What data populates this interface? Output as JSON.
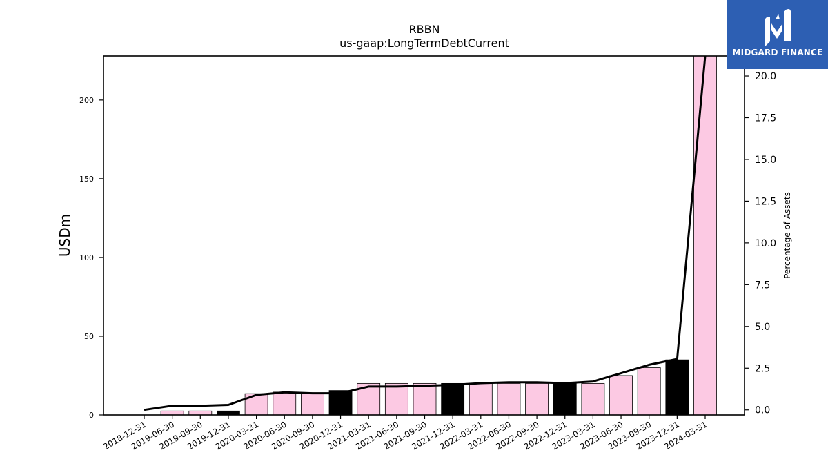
{
  "chart_data": {
    "type": "bar",
    "title": "RBBN",
    "subtitle": "us-gaap:LongTermDebtCurrent",
    "ylabel": "USDm",
    "y2label": "Percentage of Assets",
    "ylim": [
      0,
      228
    ],
    "y2lim": [
      -0.3,
      21.2
    ],
    "yticks": [
      0,
      50,
      100,
      150,
      200
    ],
    "y2ticks": [
      "0.0",
      "2.5",
      "5.0",
      "7.5",
      "10.0",
      "12.5",
      "15.0",
      "17.5",
      "20.0"
    ],
    "categories": [
      "2018-12-31",
      "2019-06-30",
      "2019-09-30",
      "2019-12-31",
      "2020-03-31",
      "2020-06-30",
      "2020-09-30",
      "2020-12-31",
      "2021-03-31",
      "2021-06-30",
      "2021-09-30",
      "2021-12-31",
      "2022-03-31",
      "2022-06-30",
      "2022-09-30",
      "2022-12-31",
      "2023-03-31",
      "2023-06-30",
      "2023-09-30",
      "2023-12-31",
      "2024-03-31"
    ],
    "series": [
      {
        "type": "bar",
        "values": [
          0,
          2.5,
          2.5,
          2.5,
          13.5,
          14.5,
          14,
          15.5,
          20,
          20,
          20,
          20,
          20,
          20,
          20,
          20,
          20,
          25,
          30,
          35,
          228
        ],
        "year_end": [
          false,
          false,
          false,
          true,
          false,
          false,
          false,
          true,
          false,
          false,
          false,
          true,
          false,
          false,
          false,
          true,
          false,
          false,
          false,
          true,
          false
        ]
      },
      {
        "type": "line",
        "axis": "right",
        "values": [
          0.0,
          0.25,
          0.25,
          0.3,
          0.9,
          1.05,
          1.0,
          1.0,
          1.4,
          1.4,
          1.45,
          1.5,
          1.6,
          1.65,
          1.65,
          1.6,
          1.7,
          2.2,
          2.7,
          3.05,
          21.2
        ]
      }
    ],
    "colors": {
      "bar": "#fcc9e3",
      "bar_year_end": "#000000",
      "line": "#000000"
    }
  },
  "logo": {
    "text": "MIDGARD FINANCE",
    "background": "#2d5fb3"
  }
}
